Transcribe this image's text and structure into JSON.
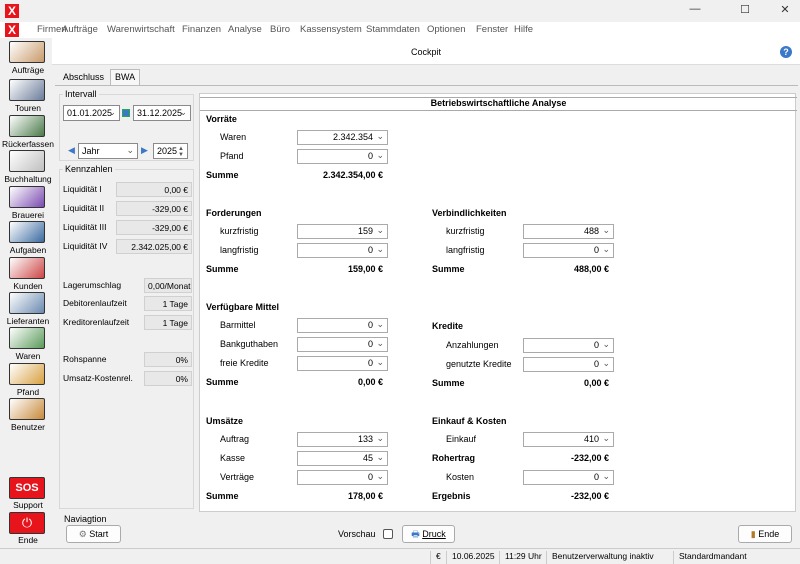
{
  "window": {
    "logo": "X",
    "minimize": "—",
    "maximize": "☐",
    "close": "✕"
  },
  "menu": [
    "Firmen",
    "Aufträge",
    "Warenwirtschaft",
    "Finanzen",
    "Analyse",
    "Büro",
    "Kassensystem",
    "Stammdaten",
    "Optionen",
    "Fenster",
    "Hilfe"
  ],
  "sidebar": [
    {
      "label": "Aufträge",
      "color": "#c99a6a"
    },
    {
      "label": "Touren",
      "color": "#6b7c9a"
    },
    {
      "label": "Rückerfassen",
      "color": "#4a7a4a"
    },
    {
      "label": "Buchhaltung",
      "color": "#bfbfbf"
    },
    {
      "label": "Brauerei",
      "color": "#7a4ab0"
    },
    {
      "label": "Aufgaben",
      "color": "#3a6aa0"
    },
    {
      "label": "Kunden",
      "color": "#c44"
    },
    {
      "label": "Lieferanten",
      "color": "#6a8ab0"
    },
    {
      "label": "Waren",
      "color": "#5a9a5a"
    },
    {
      "label": "Pfand",
      "color": "#d8a040"
    },
    {
      "label": "Benutzer",
      "color": "#c88a3a"
    }
  ],
  "sos": {
    "label": "Support",
    "icon_text": "SOS"
  },
  "ende_side": {
    "label": "Ende",
    "icon": "power-icon"
  },
  "header": {
    "title": "Cockpit",
    "help": "?"
  },
  "tabs": [
    "Abschluss",
    "BWA"
  ],
  "intervall": {
    "label": "Intervall",
    "from": "01.01.2025",
    "to": "31.12.2025",
    "period": "Jahr",
    "year": "2025"
  },
  "kennzahlen": {
    "label": "Kennzahlen",
    "rows": [
      {
        "label": "Liquidität I",
        "value": "0,00 €"
      },
      {
        "label": "Liquidität II",
        "value": "-329,00 €"
      },
      {
        "label": "Liquidität III",
        "value": "-329,00 €"
      },
      {
        "label": "Liquidität IV",
        "value": "2.342.025,00 €"
      },
      {
        "label": "Lagerumschlag",
        "value": "0,00/Monat"
      },
      {
        "label": "Debitorenlaufzeit",
        "value": "1 Tage"
      },
      {
        "label": "Kreditorenlaufzeit",
        "value": "1 Tage"
      },
      {
        "label": "Rohspanne",
        "value": "0%"
      },
      {
        "label": "Umsatz-Kostenrel.",
        "value": "0%"
      }
    ]
  },
  "bwa": {
    "title": "Betriebswirtschaftliche Analyse",
    "left": [
      {
        "heading": "Vorräte",
        "rows": [
          {
            "label": "Waren",
            "value": "2.342.354"
          },
          {
            "label": "Pfand",
            "value": "0"
          }
        ],
        "sum_label": "Summe",
        "sum": "2.342.354,00 €"
      },
      {
        "heading": "Forderungen",
        "rows": [
          {
            "label": "kurzfristig",
            "value": "159"
          },
          {
            "label": "langfristig",
            "value": "0"
          }
        ],
        "sum_label": "Summe",
        "sum": "159,00 €"
      },
      {
        "heading": "Verfügbare Mittel",
        "rows": [
          {
            "label": "Barmittel",
            "value": "0"
          },
          {
            "label": "Bankguthaben",
            "value": "0"
          },
          {
            "label": "freie Kredite",
            "value": "0"
          }
        ],
        "sum_label": "Summe",
        "sum": "0,00 €"
      },
      {
        "heading": "Umsätze",
        "rows": [
          {
            "label": "Auftrag",
            "value": "133"
          },
          {
            "label": "Kasse",
            "value": "45"
          },
          {
            "label": "Verträge",
            "value": "0"
          }
        ],
        "sum_label": "Summe",
        "sum": "178,00 €"
      }
    ],
    "right": {
      "verbindlichkeiten": {
        "heading": "Verbindlichkeiten",
        "rows": [
          {
            "label": "kurzfristig",
            "value": "488"
          },
          {
            "label": "langfristig",
            "value": "0"
          }
        ],
        "sum_label": "Summe",
        "sum": "488,00 €"
      },
      "kredite": {
        "heading": "Kredite",
        "rows": [
          {
            "label": "Anzahlungen",
            "value": "0"
          },
          {
            "label": "genutzte Kredite",
            "value": "0"
          }
        ],
        "sum_label": "Summe",
        "sum": "0,00 €"
      },
      "einkauf": {
        "heading": "Einkauf & Kosten",
        "einkauf_label": "Einkauf",
        "einkauf": "410",
        "rohertrag_label": "Rohertrag",
        "rohertrag": "-232,00 €",
        "kosten_label": "Kosten",
        "kosten": "0",
        "ergebnis_label": "Ergebnis",
        "ergebnis": "-232,00 €"
      }
    }
  },
  "footer": {
    "nav_label": "Naviagtion",
    "start": "Start",
    "vorschau": "Vorschau",
    "druck": "Druck",
    "ende": "Ende"
  },
  "status": {
    "currency": "€",
    "date": "10.06.2025",
    "time": "11:29 Uhr",
    "user": "Benutzerverwaltung inaktiv",
    "mandant": "Standardmandant"
  }
}
